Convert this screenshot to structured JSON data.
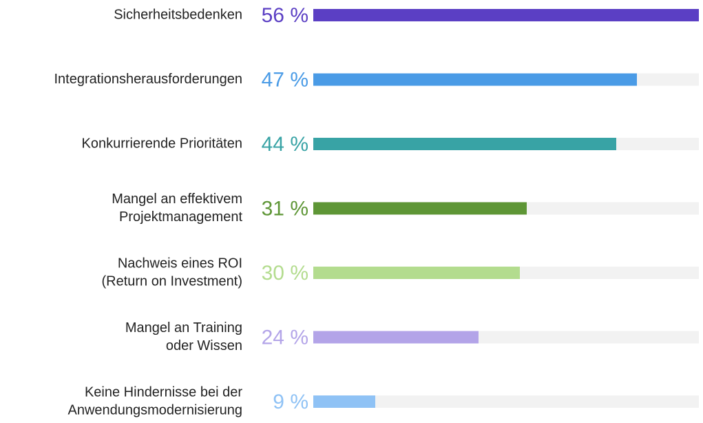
{
  "chart_data": {
    "type": "bar",
    "orientation": "horizontal",
    "categories": [
      [
        "Sicherheitsbedenken"
      ],
      [
        "Integrationsherausforderungen"
      ],
      [
        "Konkurrierende Prioritäten"
      ],
      [
        "Mangel an effektivem",
        "Projektmanagement"
      ],
      [
        "Nachweis eines ROI",
        "(Return on Investment)"
      ],
      [
        "Mangel an Training",
        "oder Wissen"
      ],
      [
        "Keine Hindernisse bei der",
        "Anwendungsmodernisierung"
      ]
    ],
    "values": [
      56,
      47,
      44,
      31,
      30,
      24,
      9
    ],
    "value_labels": [
      "56 %",
      "47 %",
      "44 %",
      "31 %",
      "30 %",
      "24 %",
      "9 %"
    ],
    "colors": [
      "#5b3fc4",
      "#4a9be6",
      "#38a3a5",
      "#5e9636",
      "#b3dc8e",
      "#b3a4e8",
      "#8fc2f5"
    ],
    "xlim": [
      0,
      56
    ]
  }
}
